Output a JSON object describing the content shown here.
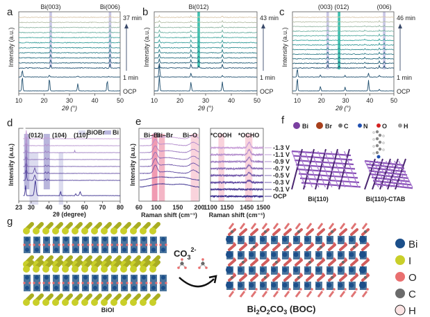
{
  "panel_labels": {
    "a": "a",
    "b": "b",
    "c": "c",
    "d": "d",
    "e": "e",
    "f": "f",
    "g": "g"
  },
  "colors": {
    "navy": "#1f4e6e",
    "teal": "#3aa7a0",
    "beige": "#d8c6aa",
    "purple_dark": "#3b2f8f",
    "purple_light": "#c9a0d8",
    "bi_band": "#b9b6dc",
    "biobr_band": "#dcdcef",
    "pink_band": "#f4b6c6",
    "bi_atom": "#1c4f8a",
    "i_atom": "#c9cf2a",
    "o_atom": "#e96f6f",
    "c_atom": "#6b6b6b",
    "h_atom": "#fbe3e3"
  },
  "chart_data": [
    {
      "panel": "a",
      "type": "line",
      "xlabel": "2θ (°)",
      "ylabel": "Intensity (a.u.)",
      "xlim": [
        10,
        50
      ],
      "xticks": [
        "10",
        "20",
        "30",
        "40",
        "50"
      ],
      "annotations": [
        {
          "text": "Bi(003)",
          "x": 22.6
        },
        {
          "text": "Bi(006)",
          "x": 46.0
        }
      ],
      "time_labels": {
        "top": "37 min",
        "first": "1 min",
        "ocp": "OCP"
      },
      "n_traces": 13,
      "peaks": {
        "ocp": [
          [
            11.4,
            1
          ],
          [
            22.1,
            0.85
          ],
          [
            33.3,
            0.5
          ],
          [
            44.9,
            0.7
          ]
        ],
        "first": [
          [
            11.4,
            0.45
          ],
          [
            22.1,
            0.12
          ],
          [
            33.3,
            0.05
          ],
          [
            45.5,
            0.05
          ]
        ],
        "rest": [
          [
            22.6,
            0.25
          ],
          [
            46.0,
            0.3
          ]
        ]
      }
    },
    {
      "panel": "b",
      "type": "line",
      "xlabel": "2θ (°)",
      "ylabel": "Intensity (a.u.)",
      "xlim": [
        10,
        50
      ],
      "xticks": [
        "10",
        "20",
        "30",
        "40",
        "50"
      ],
      "annotations": [
        {
          "text": "Bi(012)",
          "x": 27.3
        }
      ],
      "time_labels": {
        "top": "43 min",
        "first": "1 min",
        "ocp": "OCP"
      },
      "n_traces": 13,
      "peaks": {
        "ocp": [
          [
            12,
            1
          ],
          [
            24.3,
            0.6
          ],
          [
            36.5,
            0.6
          ]
        ],
        "first": [
          [
            12,
            0.9
          ],
          [
            24.3,
            0.25
          ],
          [
            36.5,
            0.1
          ]
        ],
        "rest": [
          [
            12,
            0.3
          ],
          [
            24.3,
            0.25
          ],
          [
            27.3,
            0.15
          ],
          [
            36.5,
            0.25
          ]
        ]
      }
    },
    {
      "panel": "c",
      "type": "line",
      "xlabel": "2θ (°)",
      "ylabel": "Intensity (a.u.)",
      "xlim": [
        8,
        50
      ],
      "xticks": [
        "10",
        "20",
        "30",
        "40",
        "50"
      ],
      "annotations": [
        {
          "text": "(003) (012)",
          "x": 25
        },
        {
          "text": "(006)",
          "x": 46
        }
      ],
      "time_labels": {
        "top": "46 min",
        "first": "1 min",
        "ocp": "OCP"
      },
      "n_traces": 14,
      "peaks": {
        "ocp": [
          [
            10,
            0.9
          ],
          [
            19.6,
            0.3
          ],
          [
            29.8,
            0.25
          ],
          [
            39.5,
            0.7
          ],
          [
            44,
            0.1
          ]
        ],
        "first": [
          [
            10,
            0.6
          ],
          [
            19.6,
            0.15
          ],
          [
            29.8,
            0.1
          ],
          [
            39.5,
            0.25
          ],
          [
            44,
            0.12
          ]
        ],
        "rest": [
          [
            22.6,
            0.2
          ],
          [
            27.3,
            0.15
          ],
          [
            38,
            0.1
          ],
          [
            44,
            0.15
          ],
          [
            46,
            0.15
          ]
        ]
      }
    },
    {
      "panel": "d",
      "type": "line",
      "xlabel": "2θ (degree)",
      "ylabel": "Intensity (a.u.)",
      "xlim": [
        23,
        80
      ],
      "xticks": [
        "23",
        "30",
        "40",
        "50",
        "60",
        "70",
        "80"
      ],
      "annotations": [
        {
          "text": "(012)",
          "x": 24.5
        },
        {
          "text": "(104)",
          "x": 32
        },
        {
          "text": "(110)",
          "x": 44
        }
      ],
      "legend": [
        {
          "name": "BiOBr",
          "color": "#dcdcef"
        },
        {
          "name": "Bi",
          "color": "#b9b6dc"
        }
      ],
      "n_traces": 8,
      "bands": [
        {
          "from": 26,
          "to": 29,
          "kind": "Bi"
        },
        {
          "from": 29,
          "to": 34,
          "kind": "BiOBr"
        },
        {
          "from": 37,
          "to": 40.5,
          "kind": "Bi"
        },
        {
          "from": 45.5,
          "to": 48,
          "kind": "BiOBr"
        }
      ]
    },
    {
      "panel": "e-left",
      "type": "line",
      "xlabel": "Raman shift (cm⁻¹)",
      "ylabel": "Intensity (a.u.)",
      "xlim": [
        60,
        200
      ],
      "xticks": [
        "60",
        "100",
        "150",
        "200"
      ],
      "annotations": [
        {
          "text": "Bi–Bi",
          "x": 97
        },
        {
          "text": "Bi–Br",
          "x": 120
        },
        {
          "text": "Bi–O",
          "x": 186
        }
      ],
      "n_traces": 8
    },
    {
      "panel": "e-right",
      "type": "line",
      "xlabel": "Raman shift (cm⁻¹)",
      "xlim": [
        1100,
        1500
      ],
      "xticks": [
        "1100",
        "1150",
        "1450",
        "1500"
      ],
      "annotations": [
        {
          "text": "*COOH",
          "x": 1130
        },
        {
          "text": "*OCHO",
          "x": 1455
        }
      ],
      "potentials": [
        "-1.3 V",
        "-1.1 V",
        "-0.9 V",
        "-0.7 V",
        "-0.5 V",
        "-0.3 V",
        "-0.1 V",
        "OCP"
      ]
    }
  ],
  "panel_f": {
    "legend": [
      "Bi",
      "Br",
      "C",
      "N",
      "O",
      "H"
    ],
    "legend_colors": [
      "#7a3fa0",
      "#a8401c",
      "#777777",
      "#1f4fb0",
      "#d42020",
      "#999999"
    ],
    "structures": [
      "Bi(110)",
      "Bi(110)-CTAB"
    ]
  },
  "panel_g": {
    "left_label": "BiOI",
    "reagent": "CO",
    "reagent_sub": "3",
    "reagent_sup": "2-",
    "right_label_parts": [
      "Bi",
      "2",
      "O",
      "2",
      "CO",
      "3",
      " (BOC)"
    ],
    "legend": [
      "Bi",
      "I",
      "O",
      "C",
      "H"
    ]
  }
}
